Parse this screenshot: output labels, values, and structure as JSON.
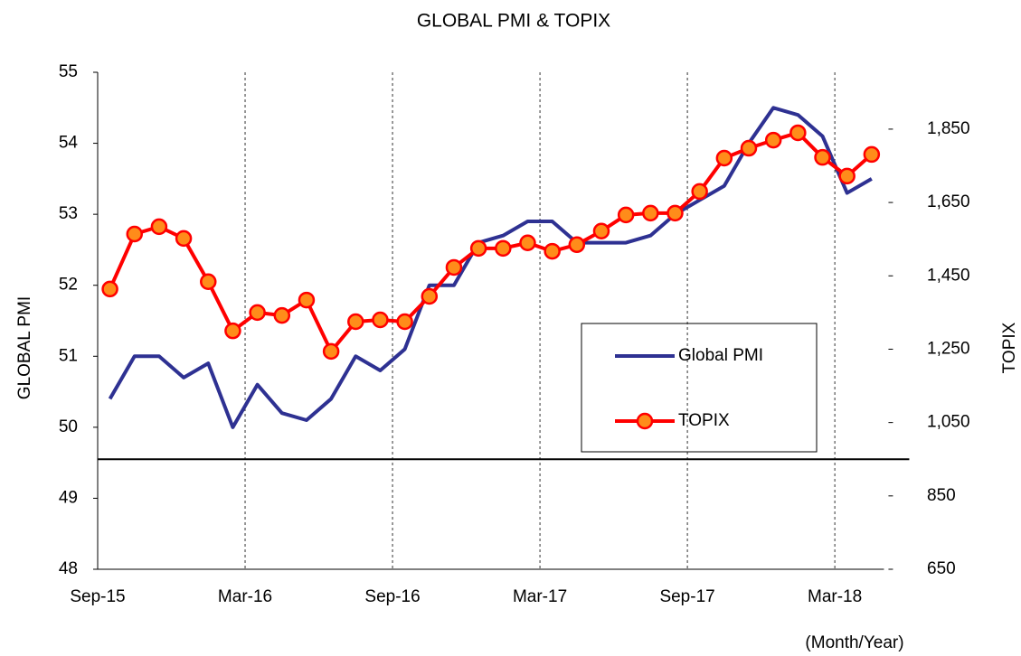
{
  "chart_data": {
    "type": "line",
    "title": "GLOBAL PMI & TOPIX",
    "y_label": "GLOBAL PMI",
    "y2_label": "TOPIX",
    "x_label": "(Month/Year)",
    "categories": [
      "Sep-15",
      null,
      null,
      null,
      null,
      null,
      "Mar-16",
      null,
      null,
      null,
      null,
      null,
      "Sep-16",
      null,
      null,
      null,
      null,
      null,
      "Mar-17",
      null,
      null,
      null,
      null,
      null,
      "Sep-17",
      null,
      null,
      null,
      null,
      null,
      "Mar-18",
      null
    ],
    "series": [
      {
        "name": "Global PMI",
        "color": "#2e3192",
        "marker": false,
        "values": [
          50.4,
          51.0,
          51.0,
          50.7,
          50.9,
          50.0,
          50.6,
          50.2,
          50.1,
          50.4,
          51.0,
          50.8,
          51.1,
          52.0,
          52.0,
          52.6,
          52.7,
          52.9,
          52.9,
          52.6,
          52.6,
          52.6,
          52.7,
          53.0,
          53.2,
          53.4,
          54.0,
          54.5,
          54.4,
          54.1,
          53.3,
          53.5
        ]
      },
      {
        "name": "TOPIX",
        "color": "#ff0000",
        "marker": true,
        "marker_color": "#ff8c1a",
        "axis": "y2",
        "values": [
          1414,
          1564,
          1584,
          1552,
          1434,
          1300,
          1350,
          1342,
          1384,
          1244,
          1325,
          1330,
          1325,
          1394,
          1473,
          1525,
          1525,
          1540,
          1517,
          1535,
          1572,
          1616,
          1621,
          1621,
          1680,
          1771,
          1798,
          1820,
          1840,
          1773,
          1722,
          1781
        ]
      }
    ],
    "ylim": [
      48,
      55
    ],
    "yticks": [
      48,
      49,
      50,
      51,
      52,
      53,
      54,
      55
    ],
    "y2lim": [
      650,
      2005
    ],
    "y2ticks": [
      650,
      850,
      {
        "value": 1050,
        "label": "1,050"
      },
      {
        "value": 1250,
        "label": "1,250"
      },
      {
        "value": 1450,
        "label": "1,450"
      },
      {
        "value": 1650,
        "label": "1,650"
      },
      {
        "value": 1850,
        "label": "1,850"
      }
    ],
    "reference_line": {
      "value": 950,
      "axis": "y2",
      "color": "#000000"
    },
    "x_grid": "dashed"
  }
}
